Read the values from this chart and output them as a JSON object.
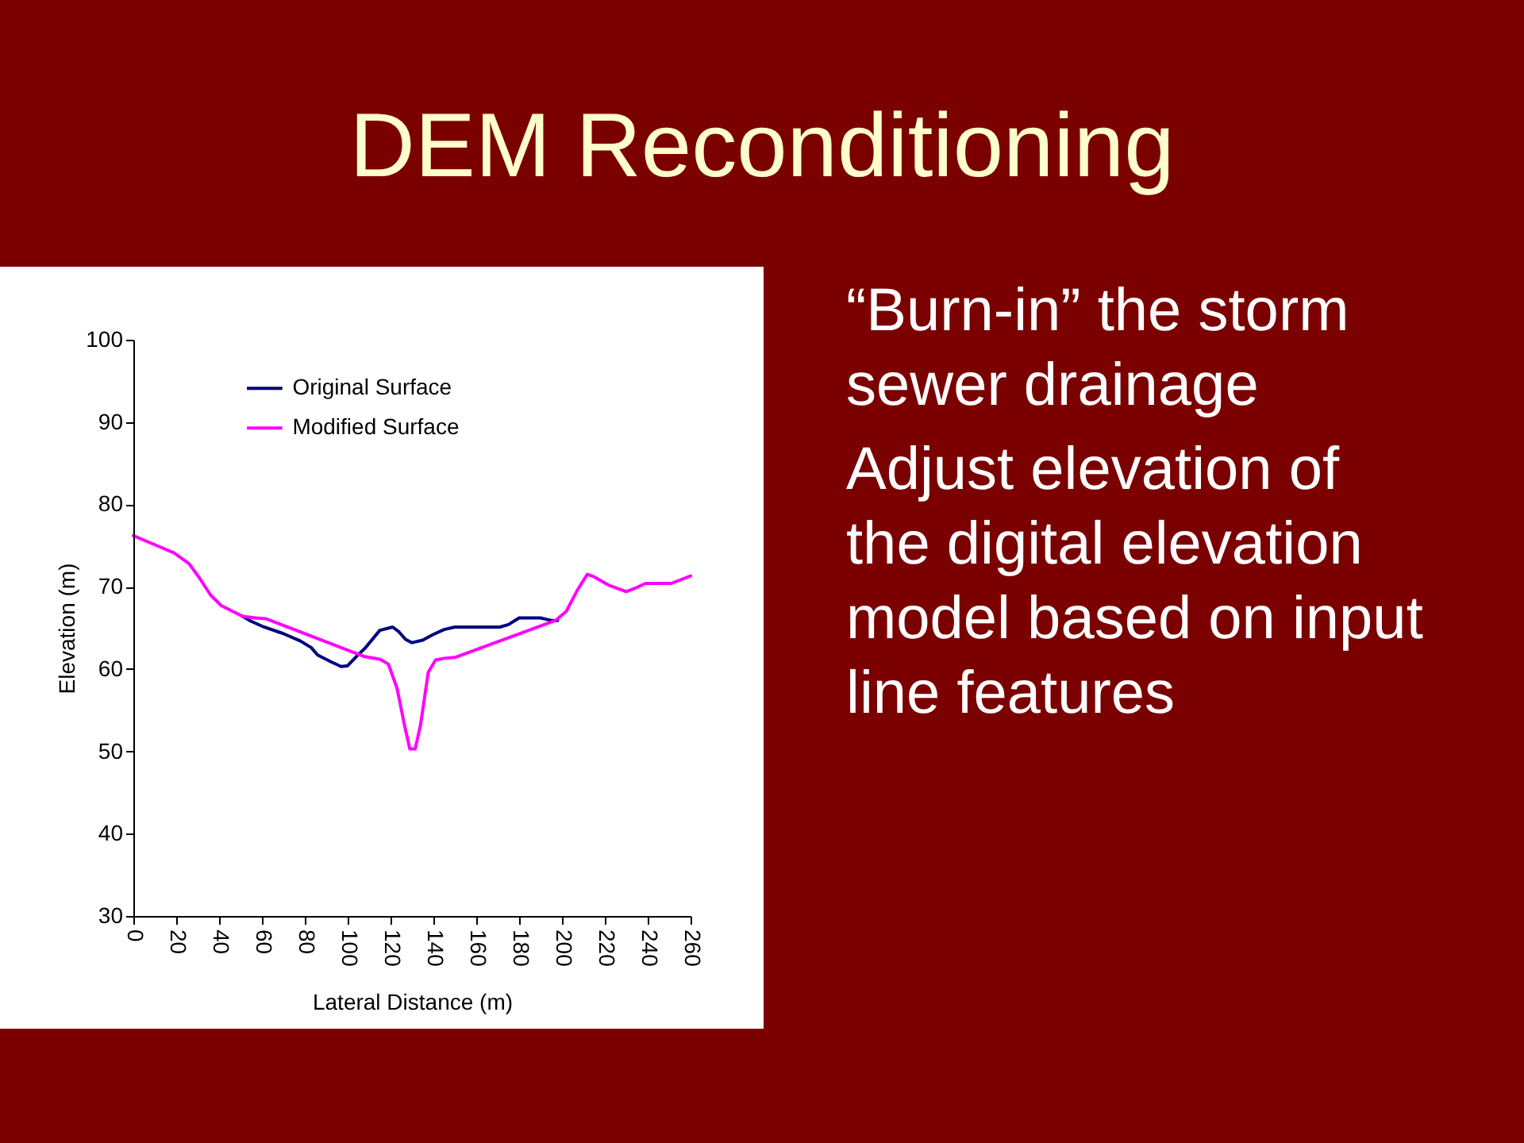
{
  "chart_data": {
    "type": "line",
    "title": "DEM Reconditioning",
    "xlabel": "Lateral Distance (m)",
    "ylabel": "Elevation (m)",
    "xlim": [
      0,
      260
    ],
    "ylim": [
      30,
      100
    ],
    "xticks": [
      0,
      20,
      40,
      60,
      80,
      100,
      120,
      140,
      160,
      180,
      200,
      220,
      240,
      260
    ],
    "yticks": [
      30,
      40,
      50,
      60,
      70,
      80,
      90,
      100
    ],
    "legend": "top",
    "annotations": [
      "“Burn-in” the storm sewer drainage",
      "Adjust elevation of the digital elevation model based on input line features"
    ],
    "series": [
      {
        "name": "Original Surface",
        "color": "#000080",
        "x": [
          51,
          55,
          61,
          70,
          78,
          83,
          86,
          92,
          97,
          100,
          104,
          108,
          115,
          121,
          124,
          127,
          130,
          135,
          140,
          145,
          150,
          171,
          175,
          180,
          190,
          195,
          198
        ],
        "values": [
          66.4,
          65.8,
          65.1,
          64.3,
          63.4,
          62.6,
          61.7,
          60.9,
          60.3,
          60.4,
          61.5,
          62.5,
          64.7,
          65.1,
          64.5,
          63.6,
          63.2,
          63.5,
          64.2,
          64.8,
          65.1,
          65.1,
          65.4,
          66.2,
          66.2,
          65.9,
          65.9
        ]
      },
      {
        "name": "Modified Surface",
        "color": "#ff00ff",
        "x": [
          0,
          10,
          19,
          26,
          31,
          36,
          41,
          51,
          57,
          62,
          108,
          115,
          119,
          123,
          126.5,
          129,
          131.5,
          134,
          137.6,
          141,
          145,
          150,
          197,
          202,
          207,
          211.8,
          215,
          221.7,
          230,
          234,
          239,
          251,
          260
        ],
        "values": [
          76.2,
          75.1,
          74.1,
          72.8,
          71,
          69,
          67.7,
          66.4,
          66.2,
          66.1,
          61.5,
          61.2,
          60.6,
          57.7,
          53.2,
          50.3,
          50.3,
          53.2,
          59.6,
          61.1,
          61.3,
          61.4,
          65.9,
          67,
          69.5,
          71.5,
          71.2,
          70.2,
          69.4,
          69.8,
          70.4,
          70.4,
          71.3
        ]
      }
    ]
  }
}
